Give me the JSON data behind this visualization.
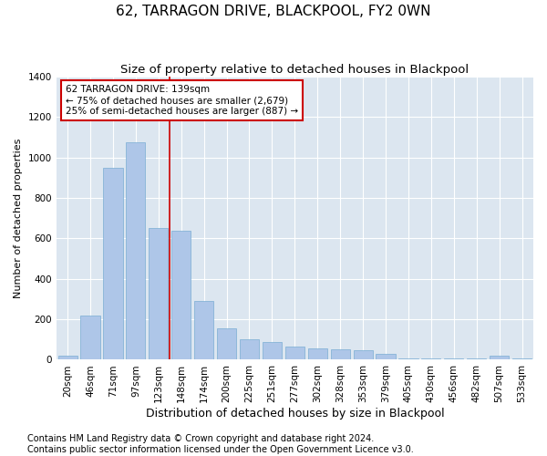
{
  "title": "62, TARRAGON DRIVE, BLACKPOOL, FY2 0WN",
  "subtitle": "Size of property relative to detached houses in Blackpool",
  "xlabel": "Distribution of detached houses by size in Blackpool",
  "ylabel": "Number of detached properties",
  "categories": [
    "20sqm",
    "46sqm",
    "71sqm",
    "97sqm",
    "123sqm",
    "148sqm",
    "174sqm",
    "200sqm",
    "225sqm",
    "251sqm",
    "277sqm",
    "302sqm",
    "328sqm",
    "353sqm",
    "379sqm",
    "405sqm",
    "430sqm",
    "456sqm",
    "482sqm",
    "507sqm",
    "533sqm"
  ],
  "values": [
    18,
    220,
    950,
    1075,
    650,
    640,
    290,
    155,
    100,
    90,
    65,
    55,
    50,
    45,
    30,
    5,
    5,
    5,
    5,
    18,
    5
  ],
  "bar_color": "#aec6e8",
  "bar_edge_color": "#7aadd4",
  "vline_color": "#cc0000",
  "vline_x_idx": 4.5,
  "annotation_text": "62 TARRAGON DRIVE: 139sqm\n← 75% of detached houses are smaller (2,679)\n25% of semi-detached houses are larger (887) →",
  "annotation_box_color": "white",
  "annotation_box_edge": "#cc0000",
  "ylim": [
    0,
    1400
  ],
  "yticks": [
    0,
    200,
    400,
    600,
    800,
    1000,
    1200,
    1400
  ],
  "footer_line1": "Contains HM Land Registry data © Crown copyright and database right 2024.",
  "footer_line2": "Contains public sector information licensed under the Open Government Licence v3.0.",
  "background_color": "#dce6f0",
  "title_fontsize": 11,
  "subtitle_fontsize": 9.5,
  "xlabel_fontsize": 9,
  "ylabel_fontsize": 8,
  "tick_fontsize": 7.5,
  "footer_fontsize": 7,
  "ann_fontsize": 7.5
}
